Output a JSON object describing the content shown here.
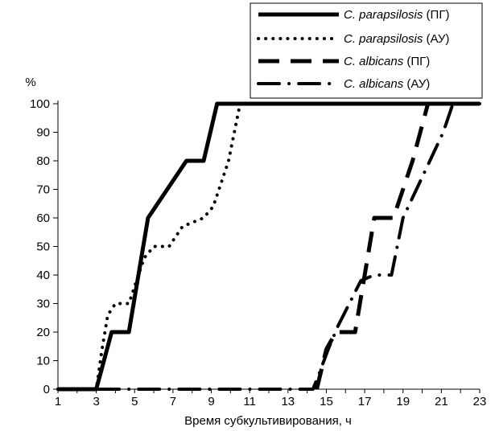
{
  "chart_data": {
    "type": "line",
    "title": "",
    "ylabel": "%",
    "xlabel": "Время субкультивирования, ч",
    "xlim": [
      1,
      23
    ],
    "ylim": [
      0,
      100
    ],
    "xticks": [
      1,
      3,
      5,
      7,
      9,
      11,
      13,
      15,
      17,
      19,
      21,
      23
    ],
    "yticks": [
      0,
      10,
      20,
      30,
      40,
      50,
      60,
      70,
      80,
      90,
      100
    ],
    "grid": false,
    "legend_position": "top-right",
    "series": [
      {
        "name_italic": "C. parapsilosis",
        "name_suffix": "(ПГ)",
        "style": "solid",
        "points": [
          [
            1,
            0
          ],
          [
            3,
            0
          ],
          [
            3.8,
            20
          ],
          [
            4.7,
            20
          ],
          [
            5.7,
            60
          ],
          [
            7.7,
            80
          ],
          [
            8.6,
            80
          ],
          [
            9.3,
            100
          ],
          [
            23,
            100
          ]
        ]
      },
      {
        "name_italic": "C. parapsilosis",
        "name_suffix": "(АУ)",
        "style": "dotted",
        "points": [
          [
            1,
            0
          ],
          [
            3,
            0
          ],
          [
            3.3,
            14
          ],
          [
            3.6,
            26
          ],
          [
            4,
            30
          ],
          [
            4.7,
            30
          ],
          [
            5.5,
            46
          ],
          [
            6,
            50
          ],
          [
            6.8,
            50
          ],
          [
            7.5,
            57
          ],
          [
            8.6,
            60
          ],
          [
            9.1,
            64
          ],
          [
            9.9,
            80
          ],
          [
            10.2,
            90
          ],
          [
            10.5,
            100
          ],
          [
            23,
            100
          ]
        ]
      },
      {
        "name_italic": "C. albicans",
        "name_suffix": "(ПГ)",
        "style": "dashed",
        "points": [
          [
            14.5,
            0
          ],
          [
            15,
            14
          ],
          [
            15.5,
            20
          ],
          [
            16.5,
            20
          ],
          [
            17.5,
            60
          ],
          [
            18.5,
            60
          ],
          [
            19.5,
            80
          ],
          [
            20.3,
            100
          ],
          [
            23,
            100
          ]
        ]
      },
      {
        "name_italic": "C. albicans",
        "name_suffix": "(АУ)",
        "style": "dashdot",
        "points": [
          [
            1,
            0
          ],
          [
            14.3,
            0
          ],
          [
            14.6,
            5
          ],
          [
            15.1,
            14
          ],
          [
            15.6,
            22
          ],
          [
            16.2,
            30
          ],
          [
            16.8,
            38
          ],
          [
            17.5,
            40
          ],
          [
            18.4,
            40
          ],
          [
            19,
            60
          ],
          [
            19.7,
            70
          ],
          [
            20.4,
            80
          ],
          [
            21.1,
            90
          ],
          [
            21.6,
            100
          ],
          [
            23,
            100
          ]
        ]
      }
    ]
  }
}
